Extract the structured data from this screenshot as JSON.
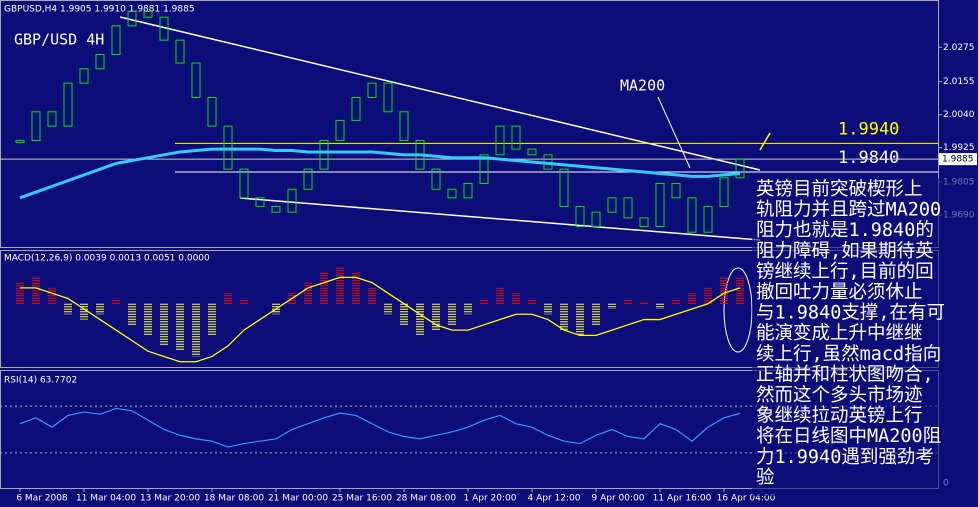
{
  "header": "GBPUSD,H4 1.9905 1.9910 1.9881 1.9885",
  "chart_data": [
    {
      "type": "price",
      "title": "GBP/USD 4H",
      "categories": [
        "6 Mar 2008",
        null,
        null,
        null,
        "11 Mar 04:00",
        null,
        null,
        null,
        "13 Mar 20:00",
        null,
        null,
        null,
        "18 Mar 08:00",
        null,
        null,
        null,
        "21 Mar 00:00",
        null,
        null,
        null,
        "25 Mar 16:00",
        null,
        null,
        null,
        "28 Mar 08:00",
        null,
        null,
        null,
        "1 Apr 20:00",
        null,
        null,
        null,
        "4 Apr 12:00",
        null,
        null,
        null,
        "9 Apr 00:00",
        null,
        null,
        null,
        "11 Apr 16:00",
        null,
        null,
        null,
        "16 Apr 04:00",
        null
      ],
      "series": [
        {
          "name": "GBPUSD",
          "color": "#00e000",
          "values": [
            1.995,
            2.005,
            2.0,
            2.015,
            2.02,
            2.025,
            2.035,
            2.04,
            2.038,
            2.03,
            2.022,
            2.01,
            2.0,
            1.985,
            1.975,
            1.972,
            1.97,
            1.978,
            1.985,
            1.995,
            2.002,
            2.01,
            2.015,
            2.005,
            1.995,
            1.985,
            1.978,
            1.975,
            1.98,
            1.99,
            2.0,
            1.992,
            1.99,
            1.985,
            1.972,
            1.965,
            1.97,
            1.975,
            1.968,
            1.965,
            1.98,
            1.975,
            1.963,
            1.972,
            1.982,
            1.9885
          ]
        },
        {
          "name": "MA200",
          "color": "#33ccff",
          "values": [
            1.975,
            1.977,
            1.979,
            1.981,
            1.983,
            1.985,
            1.987,
            1.988,
            1.989,
            1.99,
            1.991,
            1.9915,
            1.992,
            1.992,
            1.992,
            1.992,
            1.9915,
            1.9915,
            1.991,
            1.991,
            1.991,
            1.991,
            1.991,
            1.9905,
            1.99,
            1.99,
            1.9895,
            1.989,
            1.989,
            1.989,
            1.9885,
            1.988,
            1.9875,
            1.987,
            1.9865,
            1.986,
            1.9855,
            1.985,
            1.9845,
            1.984,
            1.9835,
            1.983,
            1.9825,
            1.9825,
            1.983,
            1.9835
          ]
        }
      ],
      "ylim": [
        1.9575,
        2.044
      ],
      "yticks": [
        2.0275,
        2.0155,
        {
          "value": 2.004,
          "label": "2.0040"
        },
        1.9925,
        {
          "value": 1.9805,
          "label": "1.9805"
        },
        {
          "value": 1.969,
          "label": "1.9690"
        }
      ],
      "last_price": 1.9885,
      "levels": [
        {
          "value": 1.994,
          "label": "1.9940",
          "color": "#ffff00"
        },
        {
          "value": 1.984,
          "label": "1.9840",
          "color": "#ffffff"
        }
      ]
    },
    {
      "type": "macd",
      "title": "MACD(12,26,9) 0.0039 0.0013 0.0051 0.0000",
      "series": [
        {
          "name": "histogram",
          "color": "#e01010",
          "negative_color": "#ffff40",
          "values": [
            0.004,
            0.005,
            0.003,
            -0.002,
            -0.003,
            -0.002,
            0.001,
            -0.004,
            -0.006,
            -0.008,
            -0.009,
            -0.01,
            -0.006,
            0.002,
            0.001,
            0.0,
            -0.002,
            0.002,
            0.004,
            0.006,
            0.007,
            0.006,
            0.003,
            -0.002,
            -0.004,
            -0.006,
            -0.005,
            -0.004,
            -0.002,
            0.001,
            0.003,
            0.002,
            0.001,
            -0.002,
            -0.005,
            -0.006,
            -0.004,
            -0.001,
            0.001,
            0.0005,
            -0.001,
            0.001,
            0.002,
            0.003,
            0.005,
            0.0051
          ]
        },
        {
          "name": "signal",
          "color": "#ffff00",
          "values": [
            0.003,
            0.003,
            0.002,
            0.001,
            -0.001,
            -0.003,
            -0.005,
            -0.007,
            -0.009,
            -0.01,
            -0.011,
            -0.011,
            -0.01,
            -0.008,
            -0.005,
            -0.003,
            -0.001,
            0.001,
            0.003,
            0.004,
            0.005,
            0.005,
            0.004,
            0.002,
            0.0,
            -0.002,
            -0.004,
            -0.005,
            -0.005,
            -0.004,
            -0.003,
            -0.002,
            -0.002,
            -0.003,
            -0.005,
            -0.006,
            -0.006,
            -0.005,
            -0.004,
            -0.003,
            -0.003,
            -0.002,
            -0.001,
            0.0,
            0.002,
            0.003
          ]
        }
      ],
      "ylim": [
        -0.012,
        0.01
      ]
    },
    {
      "type": "rsi",
      "title": "RSI(14) 63.7702",
      "series": [
        {
          "name": "RSI",
          "color": "#3399ff",
          "values": [
            55,
            60,
            52,
            62,
            65,
            63,
            68,
            66,
            58,
            50,
            45,
            42,
            40,
            35,
            38,
            40,
            42,
            50,
            55,
            60,
            64,
            62,
            55,
            48,
            44,
            42,
            45,
            48,
            52,
            58,
            62,
            55,
            52,
            45,
            40,
            38,
            45,
            50,
            44,
            42,
            55,
            50,
            40,
            52,
            60,
            63.7702
          ]
        }
      ],
      "ylim": [
        0,
        100
      ],
      "yticks": [
        0
      ],
      "levels": [
        30,
        70
      ]
    }
  ],
  "note_lines": [
    "英镑目前突破楔形上",
    "轨阻力并且跨过MA200",
    "阻力也就是1.9840的",
    "阻力障碍,如果期待英",
    "镑继续上行,目前的回",
    "撤回吐力量必须休止",
    "与1.9840支撑,在有可",
    "能演变成上升中继继",
    "续上行,虽然macd指向",
    "正轴并和柱状图吻合,",
    "然而这个多头市场迹",
    "象继续拉动英镑上行",
    "将在日线图中MA200阻",
    "力1.9940遇到强劲考",
    "验"
  ],
  "callout": "MA200"
}
